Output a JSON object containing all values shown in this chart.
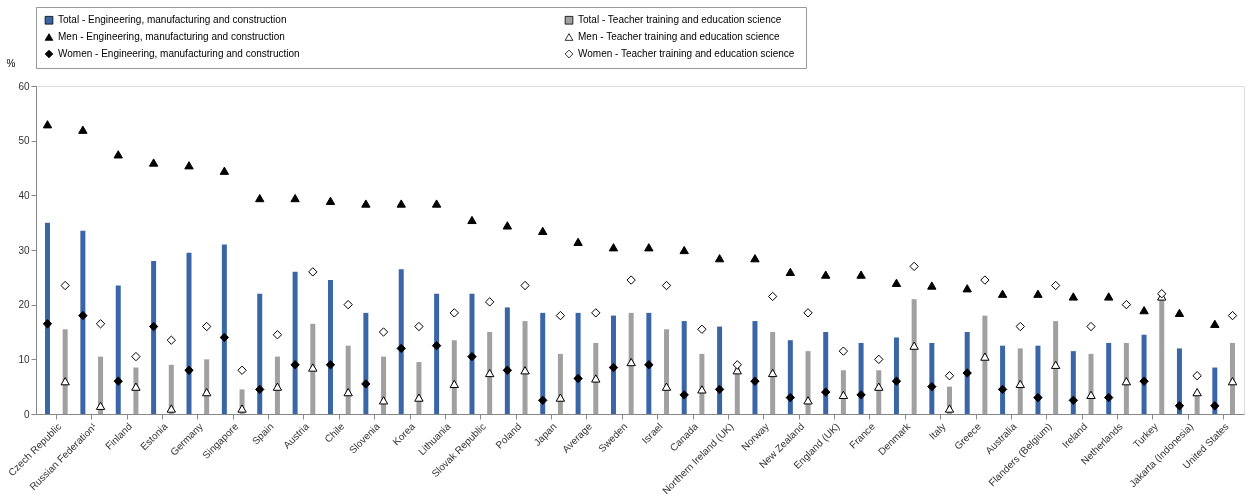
{
  "chart_data": {
    "type": "bar",
    "ylabel": "%",
    "categories": [
      "Czech Republic",
      "Russian Federation¹",
      "Finland",
      "Estonia",
      "Germany",
      "Singapore",
      "Spain",
      "Austria",
      "Chile",
      "Slovenia",
      "Korea",
      "Lithuania",
      "Slovak Republic",
      "Poland",
      "Japan",
      "Average",
      "Sweden",
      "Israel",
      "Canada",
      "Northern Ireland (UK)",
      "Norway",
      "New Zealand",
      "England (UK)",
      "France",
      "Denmark",
      "Italy",
      "Greece",
      "Australia",
      "Flanders (Belgium)",
      "Ireland",
      "Netherlands",
      "Turkey",
      "Jakarta (Indonesia)",
      "United States"
    ],
    "series": [
      {
        "name": "Total - Engineering, manufacturing and construction",
        "color": "#3a66a8",
        "values": [
          35,
          33.5,
          23.5,
          28,
          29.5,
          31,
          22,
          26,
          24.5,
          18.5,
          26.5,
          22,
          22,
          19.5,
          18.5,
          18.5,
          18,
          18.5,
          17,
          16,
          17,
          13.5,
          15,
          13,
          14,
          13,
          15,
          12.5,
          12.5,
          11.5,
          13,
          14.5,
          12,
          8.5
        ]
      },
      {
        "name": "Total - Teacher training and education science",
        "color": "#a0a0a0",
        "values": [
          15.5,
          10.5,
          8.5,
          9,
          10,
          4.5,
          10.5,
          16.5,
          12.5,
          10.5,
          9.5,
          13.5,
          15,
          17,
          11,
          13,
          18.5,
          15.5,
          11,
          8.5,
          15,
          11.5,
          8,
          8,
          21,
          5,
          18,
          12,
          17,
          11,
          13,
          21,
          4,
          13
        ]
      },
      {
        "name": "Men -  Engineering, manufacturing and construction",
        "type": "scatter",
        "marker": "triangle",
        "color": "#000000",
        "values": [
          53,
          52,
          47.5,
          46,
          45.5,
          44.5,
          39.5,
          39.5,
          39,
          38.5,
          38.5,
          38.5,
          35.5,
          34.5,
          33.5,
          31.5,
          30.5,
          30.5,
          30,
          28.5,
          28.5,
          26,
          25.5,
          25.5,
          24,
          23.5,
          23,
          22,
          22,
          21.5,
          21.5,
          19,
          18.5,
          16.5
        ]
      },
      {
        "name": "Men -  Teacher training and education science",
        "type": "scatter",
        "marker": "triangle",
        "color": "#ffffff",
        "values": [
          6,
          1.5,
          5,
          1,
          4,
          1,
          5,
          8.5,
          4,
          2.5,
          3,
          5.5,
          7.5,
          8,
          3,
          6.5,
          9.5,
          5,
          4.5,
          8,
          7.5,
          2.5,
          3.5,
          5,
          12.5,
          1,
          10.5,
          5.5,
          9,
          3.5,
          6,
          21.5,
          4,
          6
        ]
      },
      {
        "name": "Women -  Engineering, manufacturing and construction",
        "type": "scatter",
        "marker": "diamond",
        "color": "#000000",
        "values": [
          16.5,
          18,
          6,
          16,
          8,
          14,
          4.5,
          9,
          9,
          5.5,
          12,
          12.5,
          10.5,
          8,
          2.5,
          6.5,
          8.5,
          9,
          3.5,
          4.5,
          6,
          3,
          4,
          3.5,
          6,
          5,
          7.5,
          4.5,
          3,
          2.5,
          3,
          6,
          1.5,
          1.5
        ]
      },
      {
        "name": "Women -  Teacher training and education science",
        "type": "scatter",
        "marker": "diamond",
        "color": "#ffffff",
        "values": [
          23.5,
          16.5,
          10.5,
          13.5,
          16,
          8,
          14.5,
          26,
          20,
          15,
          16,
          18.5,
          20.5,
          23.5,
          18,
          18.5,
          24.5,
          23.5,
          15.5,
          9,
          21.5,
          18.5,
          11.5,
          10,
          27,
          7,
          24.5,
          16,
          23.5,
          16,
          20,
          22,
          7,
          18
        ]
      }
    ],
    "ylim": [
      0,
      60
    ],
    "yticks": [
      0,
      10,
      20,
      30,
      40,
      50,
      60
    ],
    "grid": false,
    "legend": "top"
  }
}
